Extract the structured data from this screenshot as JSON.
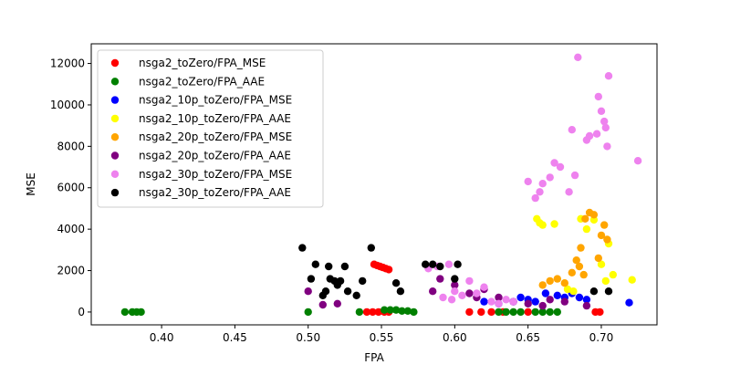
{
  "chart_data": {
    "type": "scatter",
    "title": "",
    "xlabel": "FPA",
    "ylabel": "MSE",
    "xlim": [
      0.352,
      0.738
    ],
    "ylim": [
      -620,
      12950
    ],
    "xticks": [
      0.4,
      0.45,
      0.5,
      0.55,
      0.6,
      0.65,
      0.7
    ],
    "xtick_labels": [
      "0.40",
      "0.45",
      "0.50",
      "0.55",
      "0.60",
      "0.65",
      "0.70"
    ],
    "yticks": [
      0,
      2000,
      4000,
      6000,
      8000,
      10000,
      12000
    ],
    "ytick_labels": [
      "0",
      "2000",
      "4000",
      "6000",
      "8000",
      "10000",
      "12000"
    ],
    "grid": false,
    "legend_position": "top-left",
    "series": [
      {
        "name": "nsga2_toZero/FPA_MSE",
        "color": "#ff0000",
        "points": [
          [
            0.54,
            0
          ],
          [
            0.544,
            0
          ],
          [
            0.548,
            0
          ],
          [
            0.552,
            0
          ],
          [
            0.555,
            0
          ],
          [
            0.545,
            2300
          ],
          [
            0.547,
            2250
          ],
          [
            0.549,
            2200
          ],
          [
            0.551,
            2150
          ],
          [
            0.553,
            2100
          ],
          [
            0.555,
            2050
          ],
          [
            0.61,
            0
          ],
          [
            0.618,
            0
          ],
          [
            0.625,
            0
          ],
          [
            0.633,
            0
          ],
          [
            0.65,
            0
          ],
          [
            0.696,
            0
          ],
          [
            0.699,
            0
          ]
        ]
      },
      {
        "name": "nsga2_toZero/FPA_AAE",
        "color": "#008000",
        "points": [
          [
            0.375,
            0
          ],
          [
            0.38,
            0
          ],
          [
            0.383,
            0
          ],
          [
            0.386,
            0
          ],
          [
            0.5,
            0
          ],
          [
            0.535,
            0
          ],
          [
            0.552,
            100
          ],
          [
            0.556,
            100
          ],
          [
            0.56,
            100
          ],
          [
            0.564,
            50
          ],
          [
            0.568,
            50
          ],
          [
            0.572,
            0
          ],
          [
            0.63,
            0
          ],
          [
            0.635,
            0
          ],
          [
            0.64,
            0
          ],
          [
            0.645,
            0
          ],
          [
            0.655,
            0
          ],
          [
            0.66,
            0
          ],
          [
            0.665,
            0
          ],
          [
            0.67,
            0
          ]
        ]
      },
      {
        "name": "nsga2_10p_toZero/FPA_MSE",
        "color": "#0000ff",
        "points": [
          [
            0.62,
            500
          ],
          [
            0.63,
            400
          ],
          [
            0.64,
            500
          ],
          [
            0.645,
            700
          ],
          [
            0.65,
            600
          ],
          [
            0.655,
            500
          ],
          [
            0.662,
            900
          ],
          [
            0.67,
            800
          ],
          [
            0.675,
            700
          ],
          [
            0.68,
            900
          ],
          [
            0.685,
            700
          ],
          [
            0.69,
            600
          ],
          [
            0.719,
            450
          ]
        ]
      },
      {
        "name": "nsga2_10p_toZero/FPA_AAE",
        "color": "#ffff00",
        "points": [
          [
            0.656,
            4500
          ],
          [
            0.658,
            4300
          ],
          [
            0.66,
            4200
          ],
          [
            0.668,
            4250
          ],
          [
            0.677,
            1100
          ],
          [
            0.681,
            1000
          ],
          [
            0.686,
            4500
          ],
          [
            0.69,
            4000
          ],
          [
            0.695,
            4450
          ],
          [
            0.7,
            2300
          ],
          [
            0.703,
            1500
          ],
          [
            0.705,
            3300
          ],
          [
            0.708,
            1800
          ],
          [
            0.721,
            1550
          ]
        ]
      },
      {
        "name": "nsga2_20p_toZero/FPA_MSE",
        "color": "#ffa500",
        "points": [
          [
            0.66,
            1300
          ],
          [
            0.665,
            1500
          ],
          [
            0.67,
            1600
          ],
          [
            0.675,
            1400
          ],
          [
            0.68,
            1900
          ],
          [
            0.683,
            2500
          ],
          [
            0.686,
            3100
          ],
          [
            0.689,
            4500
          ],
          [
            0.692,
            4800
          ],
          [
            0.695,
            4700
          ],
          [
            0.698,
            2600
          ],
          [
            0.7,
            3700
          ],
          [
            0.702,
            4200
          ],
          [
            0.704,
            3500
          ],
          [
            0.685,
            2200
          ],
          [
            0.688,
            1800
          ]
        ]
      },
      {
        "name": "nsga2_20p_toZero/FPA_AAE",
        "color": "#800080",
        "points": [
          [
            0.5,
            1000
          ],
          [
            0.51,
            350
          ],
          [
            0.52,
            400
          ],
          [
            0.585,
            1000
          ],
          [
            0.59,
            1600
          ],
          [
            0.6,
            1300
          ],
          [
            0.61,
            900
          ],
          [
            0.615,
            700
          ],
          [
            0.62,
            1100
          ],
          [
            0.63,
            700
          ],
          [
            0.64,
            500
          ],
          [
            0.65,
            400
          ],
          [
            0.66,
            300
          ],
          [
            0.665,
            600
          ],
          [
            0.675,
            500
          ],
          [
            0.69,
            300
          ]
        ]
      },
      {
        "name": "nsga2_30p_toZero/FPA_MSE",
        "color": "#ee82ee",
        "points": [
          [
            0.582,
            2100
          ],
          [
            0.588,
            2200
          ],
          [
            0.592,
            700
          ],
          [
            0.596,
            2300
          ],
          [
            0.598,
            600
          ],
          [
            0.6,
            1000
          ],
          [
            0.605,
            800
          ],
          [
            0.61,
            1500
          ],
          [
            0.615,
            900
          ],
          [
            0.62,
            1200
          ],
          [
            0.625,
            500
          ],
          [
            0.63,
            400
          ],
          [
            0.635,
            600
          ],
          [
            0.64,
            500
          ],
          [
            0.65,
            6300
          ],
          [
            0.655,
            5500
          ],
          [
            0.658,
            5800
          ],
          [
            0.66,
            6200
          ],
          [
            0.665,
            6500
          ],
          [
            0.668,
            7200
          ],
          [
            0.672,
            7000
          ],
          [
            0.678,
            5800
          ],
          [
            0.68,
            8800
          ],
          [
            0.682,
            6600
          ],
          [
            0.684,
            12300
          ],
          [
            0.69,
            8300
          ],
          [
            0.692,
            8500
          ],
          [
            0.697,
            8600
          ],
          [
            0.698,
            10400
          ],
          [
            0.7,
            9700
          ],
          [
            0.702,
            9200
          ],
          [
            0.703,
            8900
          ],
          [
            0.704,
            8000
          ],
          [
            0.705,
            11400
          ],
          [
            0.725,
            7300
          ]
        ]
      },
      {
        "name": "nsga2_30p_toZero/FPA_AAE",
        "color": "#000000",
        "points": [
          [
            0.496,
            3100
          ],
          [
            0.502,
            1600
          ],
          [
            0.505,
            2300
          ],
          [
            0.51,
            800
          ],
          [
            0.512,
            1000
          ],
          [
            0.514,
            2200
          ],
          [
            0.515,
            1600
          ],
          [
            0.518,
            1500
          ],
          [
            0.52,
            1300
          ],
          [
            0.522,
            1500
          ],
          [
            0.525,
            2200
          ],
          [
            0.527,
            1000
          ],
          [
            0.533,
            800
          ],
          [
            0.537,
            1500
          ],
          [
            0.543,
            3100
          ],
          [
            0.56,
            1400
          ],
          [
            0.563,
            1000
          ],
          [
            0.58,
            2300
          ],
          [
            0.585,
            2300
          ],
          [
            0.59,
            2200
          ],
          [
            0.6,
            1600
          ],
          [
            0.602,
            2300
          ],
          [
            0.695,
            1000
          ],
          [
            0.705,
            1000
          ]
        ]
      }
    ]
  }
}
